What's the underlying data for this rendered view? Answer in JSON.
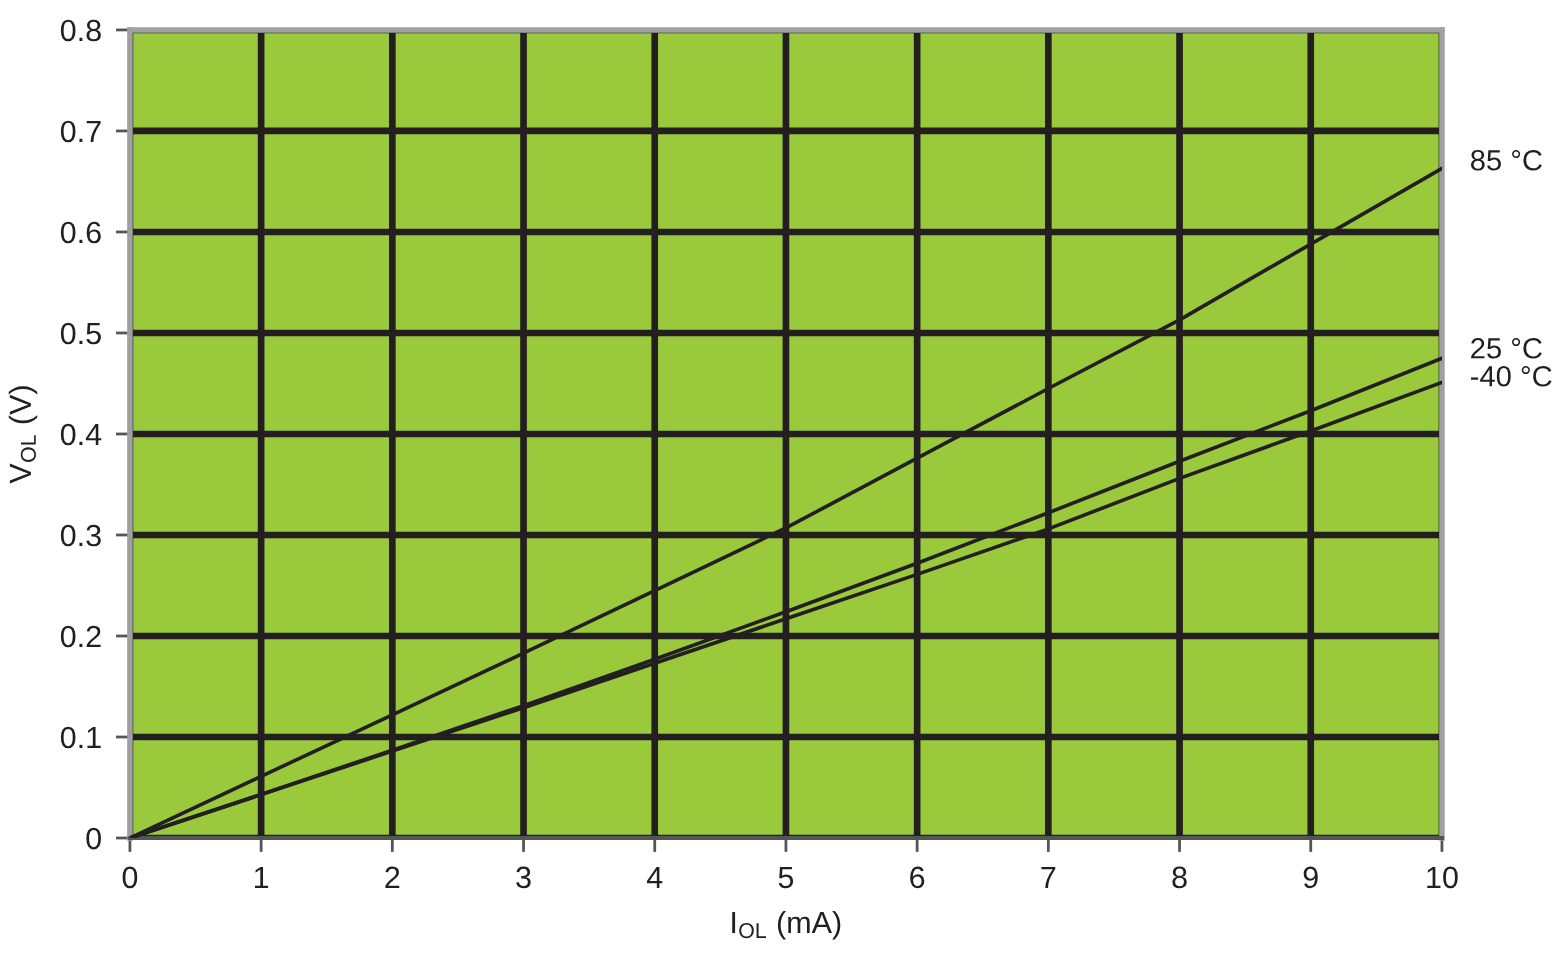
{
  "chart_data": {
    "type": "line",
    "xlabel": "I$_{OL}$ (mA)",
    "ylabel": "V$_{OL}$ (V)",
    "x": [
      0,
      1,
      2,
      3,
      4,
      5,
      6,
      7,
      8,
      9,
      10
    ],
    "series": [
      {
        "name": "85 °C",
        "color": "#231f20",
        "values": [
          0,
          0.061,
          0.122,
          0.183,
          0.245,
          0.307,
          0.376,
          0.445,
          0.513,
          0.588,
          0.663
        ]
      },
      {
        "name": "25 °C",
        "color": "#231f20",
        "values": [
          0,
          0.043,
          0.087,
          0.131,
          0.177,
          0.224,
          0.272,
          0.322,
          0.373,
          0.423,
          0.475
        ]
      },
      {
        "name": "-40 °C",
        "color": "#231f20",
        "values": [
          0,
          0.043,
          0.086,
          0.129,
          0.173,
          0.217,
          0.261,
          0.306,
          0.356,
          0.403,
          0.451
        ]
      }
    ],
    "xlim": [
      0,
      10
    ],
    "ylim": [
      0,
      0.8
    ],
    "xticks": [
      0,
      1,
      2,
      3,
      4,
      5,
      6,
      7,
      8,
      9,
      10
    ],
    "yticks": [
      0,
      0.1,
      0.2,
      0.3,
      0.4,
      0.5,
      0.6,
      0.7,
      0.8
    ],
    "grid": true,
    "legend": false,
    "marker": "none",
    "line_style": "solid"
  }
}
